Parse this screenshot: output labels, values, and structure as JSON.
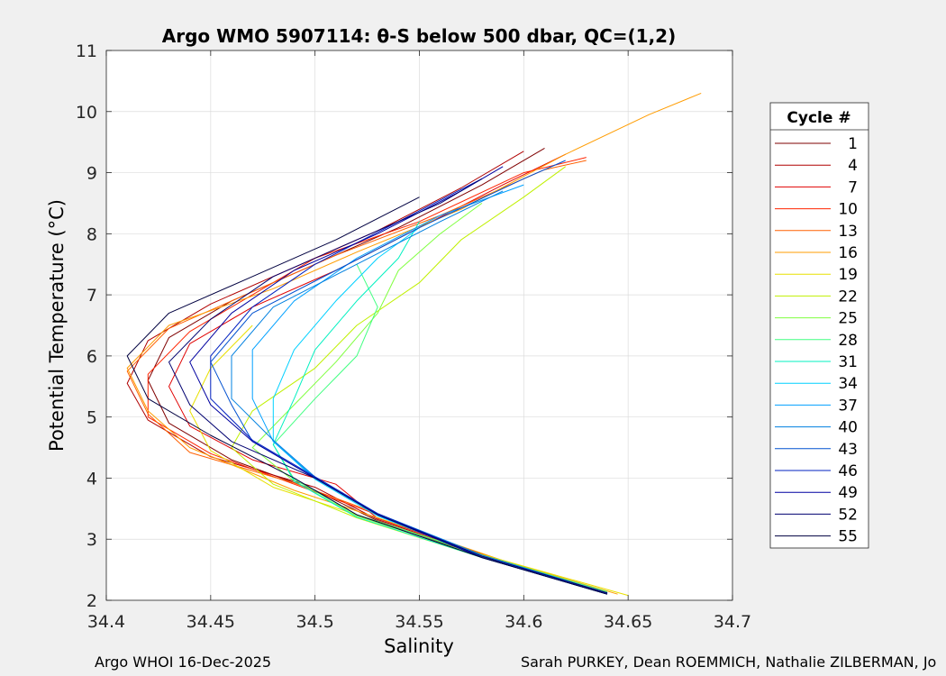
{
  "chart_data": {
    "type": "line",
    "title": "Argo WMO 5907114: θ-S below 500 dbar,  QC=(1,2)",
    "xlabel": "Salinity",
    "ylabel": "Potential Temperature (°C)",
    "xlim": [
      34.4,
      34.7
    ],
    "ylim": [
      2,
      11
    ],
    "xticks": [
      34.4,
      34.45,
      34.5,
      34.55,
      34.6,
      34.65,
      34.7
    ],
    "xtick_labels": [
      "34.4",
      "34.45",
      "34.5",
      "34.55",
      "34.6",
      "34.65",
      "34.7"
    ],
    "yticks": [
      2,
      3,
      4,
      5,
      6,
      7,
      8,
      9,
      10,
      11
    ],
    "ytick_labels": [
      "2",
      "3",
      "4",
      "5",
      "6",
      "7",
      "8",
      "9",
      "10",
      "11"
    ],
    "grid": true,
    "legend_title": "Cycle #",
    "legend_position": "outside-right",
    "series": [
      {
        "name": "1",
        "color": "#7f0000",
        "points": [
          [
            34.64,
            2.1
          ],
          [
            34.59,
            2.6
          ],
          [
            34.53,
            3.3
          ],
          [
            34.5,
            3.8
          ],
          [
            34.46,
            4.3
          ],
          [
            34.43,
            4.9
          ],
          [
            34.42,
            5.6
          ],
          [
            34.43,
            6.3
          ],
          [
            34.46,
            6.9
          ],
          [
            34.5,
            7.5
          ],
          [
            34.54,
            8.1
          ],
          [
            34.58,
            8.8
          ],
          [
            34.61,
            9.4
          ]
        ]
      },
      {
        "name": "4",
        "color": "#b00000",
        "points": [
          [
            34.64,
            2.12
          ],
          [
            34.59,
            2.62
          ],
          [
            34.53,
            3.32
          ],
          [
            34.5,
            3.85
          ],
          [
            34.45,
            4.35
          ],
          [
            34.42,
            4.95
          ],
          [
            34.41,
            5.55
          ],
          [
            34.42,
            6.25
          ],
          [
            34.45,
            6.85
          ],
          [
            34.49,
            7.45
          ],
          [
            34.53,
            8.05
          ],
          [
            34.57,
            8.75
          ],
          [
            34.6,
            9.35
          ]
        ]
      },
      {
        "name": "7",
        "color": "#e00000",
        "points": [
          [
            34.64,
            2.14
          ],
          [
            34.59,
            2.64
          ],
          [
            34.53,
            3.34
          ],
          [
            34.51,
            3.9
          ],
          [
            34.47,
            4.3
          ],
          [
            34.44,
            4.85
          ],
          [
            34.43,
            5.5
          ],
          [
            34.44,
            6.2
          ],
          [
            34.47,
            6.8
          ],
          [
            34.51,
            7.4
          ],
          [
            34.55,
            8.1
          ],
          [
            34.59,
            8.8
          ],
          [
            34.62,
            9.3
          ]
        ]
      },
      {
        "name": "10",
        "color": "#ff2400",
        "points": [
          [
            34.64,
            2.1
          ],
          [
            34.58,
            2.7
          ],
          [
            34.53,
            3.4
          ],
          [
            34.49,
            3.9
          ],
          [
            34.45,
            4.4
          ],
          [
            34.42,
            5.0
          ],
          [
            34.42,
            5.7
          ],
          [
            34.44,
            6.4
          ],
          [
            34.47,
            7.0
          ],
          [
            34.5,
            7.6
          ],
          [
            34.55,
            8.2
          ],
          [
            34.6,
            9.0
          ],
          [
            34.63,
            9.25
          ]
        ]
      },
      {
        "name": "13",
        "color": "#ff6000",
        "points": [
          [
            34.64,
            2.12
          ],
          [
            34.58,
            2.72
          ],
          [
            34.53,
            3.42
          ],
          [
            34.49,
            3.92
          ],
          [
            34.44,
            4.42
          ],
          [
            34.42,
            5.05
          ],
          [
            34.41,
            5.75
          ],
          [
            34.43,
            6.45
          ],
          [
            34.47,
            7.05
          ],
          [
            34.51,
            7.65
          ],
          [
            34.56,
            8.3
          ],
          [
            34.61,
            9.05
          ],
          [
            34.63,
            9.2
          ]
        ]
      },
      {
        "name": "16",
        "color": "#ff9c00",
        "points": [
          [
            34.645,
            2.1
          ],
          [
            34.59,
            2.65
          ],
          [
            34.53,
            3.35
          ],
          [
            34.49,
            3.8
          ],
          [
            34.44,
            4.5
          ],
          [
            34.42,
            5.1
          ],
          [
            34.41,
            5.8
          ],
          [
            34.43,
            6.5
          ],
          [
            34.48,
            7.1
          ],
          [
            34.52,
            7.7
          ],
          [
            34.57,
            8.4
          ],
          [
            34.62,
            9.3
          ],
          [
            34.66,
            9.95
          ],
          [
            34.685,
            10.3
          ]
        ]
      },
      {
        "name": "19",
        "color": "#e8e000",
        "points": [
          [
            34.65,
            2.08
          ],
          [
            34.58,
            2.75
          ],
          [
            34.52,
            3.4
          ],
          [
            34.48,
            3.85
          ],
          [
            34.45,
            4.45
          ],
          [
            34.44,
            5.1
          ],
          [
            34.45,
            5.8
          ],
          [
            34.47,
            6.5
          ]
        ]
      },
      {
        "name": "22",
        "color": "#c0f000",
        "points": [
          [
            34.64,
            2.1
          ],
          [
            34.58,
            2.7
          ],
          [
            34.52,
            3.35
          ],
          [
            34.48,
            3.9
          ],
          [
            34.46,
            4.5
          ],
          [
            34.47,
            5.1
          ],
          [
            34.5,
            5.8
          ],
          [
            34.52,
            6.5
          ],
          [
            34.55,
            7.2
          ],
          [
            34.57,
            7.9
          ],
          [
            34.6,
            8.6
          ],
          [
            34.62,
            9.1
          ]
        ]
      },
      {
        "name": "25",
        "color": "#80ff40",
        "points": [
          [
            34.64,
            2.12
          ],
          [
            34.58,
            2.72
          ],
          [
            34.52,
            3.38
          ],
          [
            34.49,
            3.95
          ],
          [
            34.47,
            4.5
          ],
          [
            34.49,
            5.2
          ],
          [
            34.51,
            5.9
          ],
          [
            34.53,
            6.7
          ],
          [
            34.54,
            7.4
          ],
          [
            34.56,
            8.0
          ],
          [
            34.58,
            8.5
          ]
        ]
      },
      {
        "name": "28",
        "color": "#40ff80",
        "points": [
          [
            34.64,
            2.14
          ],
          [
            34.58,
            2.74
          ],
          [
            34.52,
            3.4
          ],
          [
            34.49,
            3.98
          ],
          [
            34.48,
            4.55
          ],
          [
            34.5,
            5.3
          ],
          [
            34.52,
            6.0
          ],
          [
            34.53,
            6.8
          ],
          [
            34.52,
            7.5
          ]
        ]
      },
      {
        "name": "31",
        "color": "#00f0c0",
        "points": [
          [
            34.64,
            2.1
          ],
          [
            34.58,
            2.7
          ],
          [
            34.52,
            3.36
          ],
          [
            34.49,
            3.95
          ],
          [
            34.48,
            4.55
          ],
          [
            34.49,
            5.3
          ],
          [
            34.5,
            6.1
          ],
          [
            34.52,
            6.9
          ],
          [
            34.54,
            7.6
          ],
          [
            34.55,
            8.2
          ]
        ]
      },
      {
        "name": "34",
        "color": "#00d0ff",
        "points": [
          [
            34.64,
            2.12
          ],
          [
            34.58,
            2.72
          ],
          [
            34.53,
            3.38
          ],
          [
            34.5,
            3.98
          ],
          [
            34.48,
            4.6
          ],
          [
            34.48,
            5.3
          ],
          [
            34.49,
            6.1
          ],
          [
            34.51,
            6.9
          ],
          [
            34.53,
            7.6
          ],
          [
            34.55,
            8.1
          ]
        ]
      },
      {
        "name": "37",
        "color": "#00a0ff",
        "points": [
          [
            34.64,
            2.1
          ],
          [
            34.58,
            2.72
          ],
          [
            34.53,
            3.4
          ],
          [
            34.5,
            4.0
          ],
          [
            34.48,
            4.6
          ],
          [
            34.47,
            5.3
          ],
          [
            34.47,
            6.1
          ],
          [
            34.49,
            6.9
          ],
          [
            34.52,
            7.6
          ],
          [
            34.56,
            8.3
          ],
          [
            34.6,
            8.8
          ]
        ]
      },
      {
        "name": "40",
        "color": "#0080e0",
        "points": [
          [
            34.64,
            2.12
          ],
          [
            34.58,
            2.74
          ],
          [
            34.53,
            3.42
          ],
          [
            34.5,
            4.02
          ],
          [
            34.48,
            4.62
          ],
          [
            34.46,
            5.3
          ],
          [
            34.46,
            6.0
          ],
          [
            34.48,
            6.8
          ],
          [
            34.52,
            7.5
          ],
          [
            34.56,
            8.2
          ],
          [
            34.59,
            8.7
          ]
        ]
      },
      {
        "name": "43",
        "color": "#0050d0",
        "points": [
          [
            34.64,
            2.1
          ],
          [
            34.58,
            2.7
          ],
          [
            34.53,
            3.4
          ],
          [
            34.5,
            4.0
          ],
          [
            34.47,
            4.6
          ],
          [
            34.46,
            5.2
          ],
          [
            34.45,
            5.9
          ],
          [
            34.47,
            6.7
          ],
          [
            34.51,
            7.4
          ],
          [
            34.55,
            8.1
          ],
          [
            34.6,
            8.9
          ],
          [
            34.62,
            9.2
          ]
        ]
      },
      {
        "name": "46",
        "color": "#0020c0",
        "points": [
          [
            34.64,
            2.12
          ],
          [
            34.58,
            2.72
          ],
          [
            34.53,
            3.42
          ],
          [
            34.5,
            4.02
          ],
          [
            34.47,
            4.62
          ],
          [
            34.45,
            5.3
          ],
          [
            34.45,
            6.0
          ],
          [
            34.47,
            6.8
          ],
          [
            34.5,
            7.5
          ],
          [
            34.54,
            8.2
          ],
          [
            34.58,
            8.9
          ]
        ]
      },
      {
        "name": "49",
        "color": "#0000a0",
        "points": [
          [
            34.64,
            2.1
          ],
          [
            34.58,
            2.7
          ],
          [
            34.53,
            3.4
          ],
          [
            34.5,
            4.0
          ],
          [
            34.47,
            4.6
          ],
          [
            34.45,
            5.2
          ],
          [
            34.44,
            5.9
          ],
          [
            34.46,
            6.7
          ],
          [
            34.49,
            7.4
          ],
          [
            34.53,
            8.0
          ],
          [
            34.57,
            8.7
          ],
          [
            34.59,
            9.1
          ]
        ]
      },
      {
        "name": "52",
        "color": "#000070",
        "points": [
          [
            34.64,
            2.12
          ],
          [
            34.58,
            2.72
          ],
          [
            34.53,
            3.4
          ],
          [
            34.5,
            4.0
          ],
          [
            34.46,
            4.6
          ],
          [
            34.44,
            5.2
          ],
          [
            34.43,
            5.9
          ],
          [
            34.45,
            6.6
          ],
          [
            34.48,
            7.3
          ],
          [
            34.52,
            7.9
          ],
          [
            34.56,
            8.5
          ],
          [
            34.58,
            8.9
          ]
        ]
      },
      {
        "name": "55",
        "color": "#000040",
        "points": [
          [
            34.64,
            2.1
          ],
          [
            34.58,
            2.7
          ],
          [
            34.52,
            3.4
          ],
          [
            34.49,
            4.0
          ],
          [
            34.45,
            4.7
          ],
          [
            34.42,
            5.3
          ],
          [
            34.41,
            6.0
          ],
          [
            34.43,
            6.7
          ],
          [
            34.47,
            7.3
          ],
          [
            34.51,
            7.9
          ],
          [
            34.55,
            8.6
          ]
        ]
      }
    ]
  },
  "footer": {
    "left": "Argo WHOI 16-Dec-2025",
    "right": "Sarah PURKEY, Dean ROEMMICH, Nathalie ZILBERMAN, Jo"
  }
}
